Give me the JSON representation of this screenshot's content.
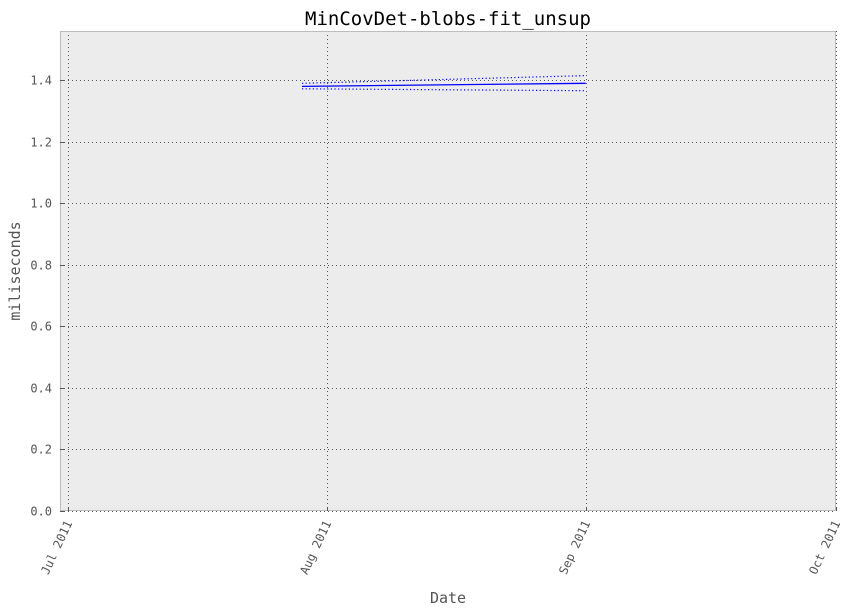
{
  "chart_data": {
    "type": "line",
    "title": "MinCovDet-blobs-fit_unsup",
    "xlabel": "Date",
    "ylabel": "miliseconds",
    "x_ticks": [
      {
        "date": "2011-07-01",
        "label": "Jul 2011"
      },
      {
        "date": "2011-08-01",
        "label": "Aug 2011"
      },
      {
        "date": "2011-09-01",
        "label": "Sep 2011"
      },
      {
        "date": "2011-10-01",
        "label": "Oct 2011"
      }
    ],
    "y_ticks": [
      "0.0",
      "0.2",
      "0.4",
      "0.6",
      "0.8",
      "1.0",
      "1.2",
      "1.4"
    ],
    "xlim": [
      "2011-06-30",
      "2011-10-01"
    ],
    "ylim": [
      0,
      1.56
    ],
    "grid": true,
    "background": "#ececec",
    "series": [
      {
        "role": "mean",
        "color": "#0000ff",
        "line_style": "solid",
        "x": [
          "2011-07-29",
          "2011-09-01"
        ],
        "values": [
          1.38,
          1.39
        ]
      },
      {
        "role": "upper",
        "color": "#0000ff",
        "line_style": "dotted",
        "x": [
          "2011-07-29",
          "2011-09-01"
        ],
        "values": [
          1.39,
          1.415
        ]
      },
      {
        "role": "lower",
        "color": "#0000ff",
        "line_style": "dotted",
        "x": [
          "2011-07-29",
          "2011-09-01"
        ],
        "values": [
          1.372,
          1.366
        ]
      }
    ]
  }
}
